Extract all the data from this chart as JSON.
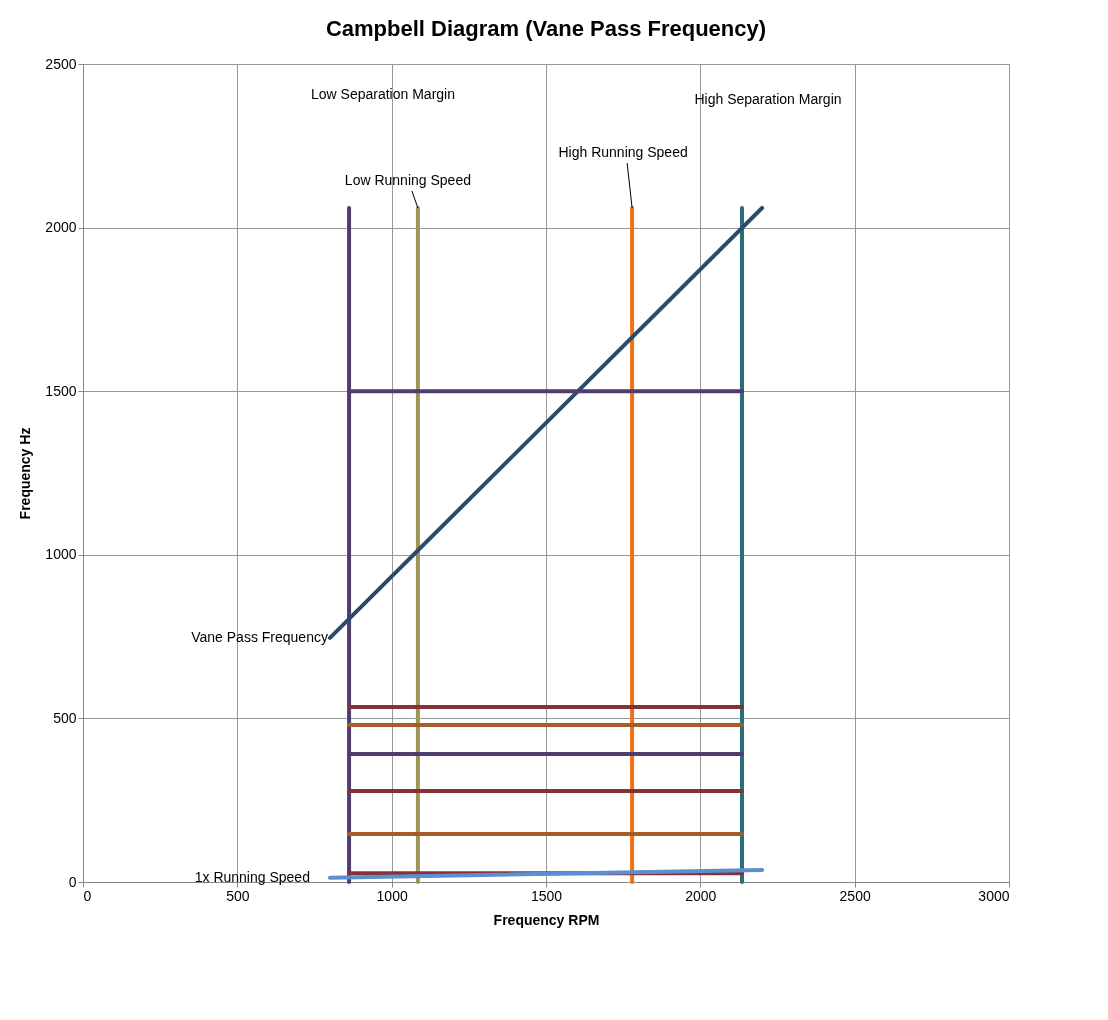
{
  "chart_data": {
    "type": "line",
    "title": "Campbell Diagram (Vane Pass Frequency)",
    "xlabel": "Frequency RPM",
    "ylabel": "Frequency Hz",
    "xlim": [
      0,
      3000
    ],
    "xticks": [
      0,
      500,
      1000,
      1500,
      2000,
      2500,
      3000
    ],
    "ylim": [
      0,
      2500
    ],
    "yticks": [
      0,
      500,
      1000,
      1500,
      2000,
      2500
    ],
    "grid": true,
    "legend": false,
    "series": [
      {
        "color": "#4f3d6e",
        "x": [
          862,
          862
        ],
        "values": [
          0,
          2060
        ]
      },
      {
        "color": "#9b9457",
        "x": [
          1085,
          1085
        ],
        "values": [
          0,
          2060
        ]
      },
      {
        "color": "#f07114",
        "x": [
          1779,
          1779
        ],
        "values": [
          0,
          2060
        ]
      },
      {
        "color": "#2a6e7e",
        "x": [
          2135,
          2135
        ],
        "values": [
          0,
          2060
        ]
      },
      {
        "color": "#2c4a6e",
        "x": [
          800,
          2200
        ],
        "values": [
          746,
          2060
        ]
      },
      {
        "color": "#4f3d6e",
        "x": [
          862,
          2135
        ],
        "values": [
          1500,
          1500
        ]
      },
      {
        "color": "#843236",
        "x": [
          862,
          2135
        ],
        "values": [
          535,
          535
        ]
      },
      {
        "color": "#a55e2a",
        "x": [
          862,
          2135
        ],
        "values": [
          480,
          480
        ]
      },
      {
        "color": "#4f3d6e",
        "x": [
          862,
          2135
        ],
        "values": [
          391,
          391
        ]
      },
      {
        "color": "#843236",
        "x": [
          862,
          2135
        ],
        "values": [
          278,
          278
        ]
      },
      {
        "color": "#a55e2a",
        "x": [
          862,
          2135
        ],
        "values": [
          147,
          147
        ]
      },
      {
        "color": "#843236",
        "x": [
          862,
          2135
        ],
        "values": [
          27,
          27
        ]
      },
      {
        "color": "#5b8fd0",
        "x": [
          800,
          2200
        ],
        "values": [
          13,
          37
        ]
      }
    ],
    "annotations": [
      "Low Separation Margin",
      {
        "text": "Low Running Speed",
        "x": 1085,
        "y": 2060
      },
      {
        "text": "High Running Speed",
        "x": 1779,
        "y": 2060
      },
      "High Separation Margin",
      {
        "text": "Vane Pass Frequency",
        "x": 800,
        "y": 746
      },
      {
        "text": "1x Running Speed",
        "x": 800,
        "y": 13
      }
    ]
  }
}
